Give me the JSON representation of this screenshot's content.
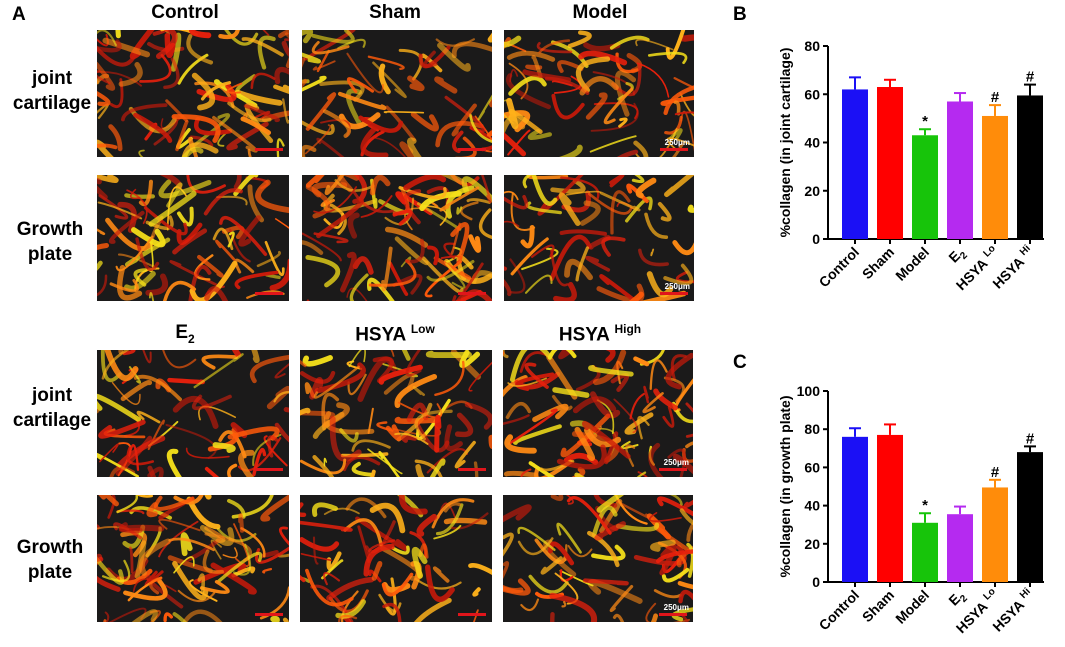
{
  "panel_a": {
    "letter": "A",
    "top_columns": [
      "Control",
      "Sham",
      "Model"
    ],
    "bottom_columns": [
      {
        "base": "E",
        "sub": "2",
        "sup": ""
      },
      {
        "base": "HSYA ",
        "sub": "",
        "sup": "Low"
      },
      {
        "base": "HSYA ",
        "sub": "",
        "sup": "High"
      }
    ],
    "row_labels": [
      {
        "line1": "joint",
        "line2": "cartilage"
      },
      {
        "line1": "Growth",
        "line2": "plate"
      },
      {
        "line1": "joint",
        "line2": "cartilage"
      },
      {
        "line1": "Growth",
        "line2": "plate"
      }
    ],
    "scale_text": "250μm"
  },
  "chart_data": [
    {
      "panel": "B",
      "type": "bar",
      "categories": [
        "Control",
        "Sham",
        "Model",
        "E2",
        "HSYA Lo",
        "HSYA Hi"
      ],
      "category_labels": [
        {
          "base": "Control",
          "sub": "",
          "sup": ""
        },
        {
          "base": "Sham",
          "sub": "",
          "sup": ""
        },
        {
          "base": "Model",
          "sub": "",
          "sup": ""
        },
        {
          "base": "E",
          "sub": "2",
          "sup": ""
        },
        {
          "base": "HSYA",
          "sub": "",
          "sup": "Lo"
        },
        {
          "base": "HSYA",
          "sub": "",
          "sup": "Hi"
        }
      ],
      "values": [
        62,
        63,
        43,
        57,
        51,
        59.5
      ],
      "errors": [
        5,
        3,
        2.5,
        3.5,
        4.5,
        4.5
      ],
      "annotations": [
        "",
        "",
        "*",
        "",
        "#",
        "#"
      ],
      "colors": [
        "#1b10f5",
        "#ff0000",
        "#17c40a",
        "#b52af0",
        "#ff8c0a",
        "#000000"
      ],
      "ylabel": "%collagen (in joint cartilage)",
      "ylim": [
        0,
        80
      ],
      "yticks": [
        "0",
        "20",
        "40",
        "60",
        "80"
      ]
    },
    {
      "panel": "C",
      "type": "bar",
      "categories": [
        "Control",
        "Sham",
        "Model",
        "E2",
        "HSYA Lo",
        "HSYA Hi"
      ],
      "category_labels": [
        {
          "base": "Control",
          "sub": "",
          "sup": ""
        },
        {
          "base": "Sham",
          "sub": "",
          "sup": ""
        },
        {
          "base": "Model",
          "sub": "",
          "sup": ""
        },
        {
          "base": "E",
          "sub": "2",
          "sup": ""
        },
        {
          "base": "HSYA",
          "sub": "",
          "sup": "Lo"
        },
        {
          "base": "HSYA",
          "sub": "",
          "sup": "Hi"
        }
      ],
      "values": [
        76,
        77,
        31,
        35.5,
        49.5,
        68
      ],
      "errors": [
        4.5,
        5.5,
        5,
        4,
        4,
        3
      ],
      "annotations": [
        "",
        "",
        "*",
        "",
        "#",
        "#"
      ],
      "colors": [
        "#1b10f5",
        "#ff0000",
        "#17c40a",
        "#b52af0",
        "#ff8c0a",
        "#000000"
      ],
      "ylabel": "%collagen (in growth plate)",
      "ylim": [
        0,
        100
      ],
      "yticks": [
        "0",
        "20",
        "40",
        "60",
        "80",
        "100"
      ]
    }
  ]
}
